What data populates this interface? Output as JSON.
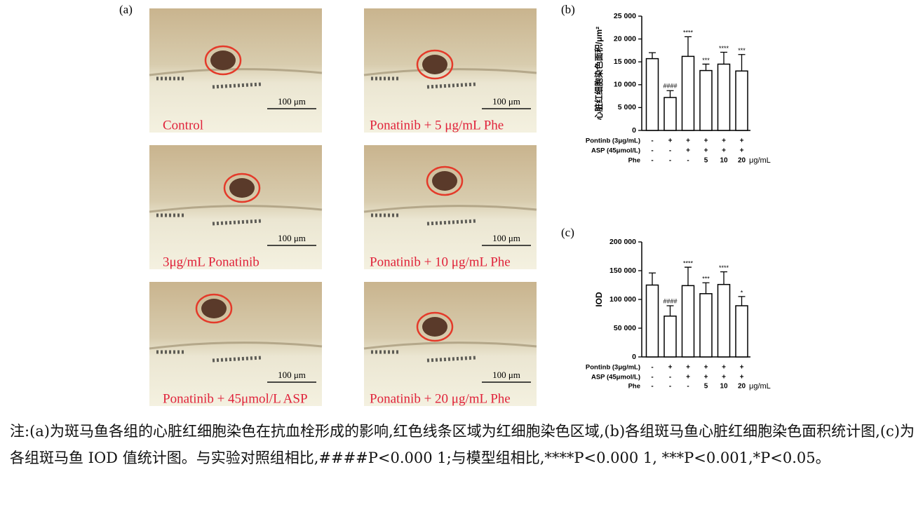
{
  "figure": {
    "panel_a": {
      "label": "(a)",
      "images": [
        {
          "caption": "Control",
          "scale": "100 μm"
        },
        {
          "caption": "Ponatinib + 5 μg/mL Phe",
          "scale": "100 μm"
        },
        {
          "caption": "3μg/mL  Ponatinib",
          "scale": "100 μm"
        },
        {
          "caption": "Ponatinib + 10 μg/mL Phe",
          "scale": "100 μm"
        },
        {
          "caption": "Ponatinib + 45μmol/L ASP",
          "scale": "100 μm"
        },
        {
          "caption": "Ponatinib + 20 μg/mL Phe",
          "scale": "100 μm"
        }
      ]
    },
    "caption": "注:(a)为斑马鱼各组的心脏红细胞染色在抗血栓形成的影响,红色线条区域为红细胞染色区域,(b)各组斑马鱼心脏红细胞染色面积统计图,(c)为各组斑马鱼 IOD 值统计图。与实验对照组相比,####P<0.000 1;与模型组相比,****P<0.000 1, ***P<0.001,*P<0.05。"
  },
  "chart_data": [
    {
      "type": "bar",
      "panel_label": "(b)",
      "y_label": "心脏红细胞染色面积/μm²",
      "color": "#ffffff",
      "values": [
        15700,
        7200,
        16200,
        13100,
        14500,
        13000
      ],
      "errors": [
        1300,
        1500,
        4300,
        1400,
        2600,
        3600
      ],
      "annotations": [
        null,
        "####",
        "****",
        "***",
        "****",
        "***"
      ],
      "ylim": [
        0,
        25000
      ],
      "yticks": [
        0,
        {
          "value": 5000,
          "label": "5 000"
        },
        {
          "value": 10000,
          "label": "10 000"
        },
        {
          "value": 15000,
          "label": "15 000"
        },
        {
          "value": 20000,
          "label": "20 000"
        },
        {
          "value": 25000,
          "label": "25 000"
        }
      ],
      "conditions": [
        {
          "name": "Pontinb (3μg/mL)",
          "values": [
            "-",
            "+",
            "+",
            "+",
            "+",
            "+"
          ]
        },
        {
          "name": "ASP (45μmol/L)",
          "values": [
            "-",
            "-",
            "+",
            "+",
            "+",
            "+"
          ]
        },
        {
          "name": "Phe",
          "values": [
            "-",
            "-",
            "-",
            "5",
            "10",
            "20"
          ]
        }
      ],
      "phe_unit": "μg/mL"
    },
    {
      "type": "bar",
      "panel_label": "(c)",
      "y_label": "IOD",
      "color": "#ffffff",
      "values": [
        125000,
        71000,
        124000,
        110000,
        126000,
        89000
      ],
      "errors": [
        21000,
        18000,
        32000,
        19000,
        22000,
        16000
      ],
      "annotations": [
        null,
        "####",
        "****",
        "***",
        "****",
        "*"
      ],
      "ylim": [
        0,
        200000
      ],
      "yticks": [
        0,
        {
          "value": 50000,
          "label": "50 000"
        },
        {
          "value": 100000,
          "label": "100 000"
        },
        {
          "value": 150000,
          "label": "150 000"
        },
        {
          "value": 200000,
          "label": "200 000"
        }
      ],
      "conditions": [
        {
          "name": "Pontinb (3μg/mL)",
          "values": [
            "-",
            "+",
            "+",
            "+",
            "+",
            "+"
          ]
        },
        {
          "name": "ASP (45μmol/L)",
          "values": [
            "-",
            "-",
            "+",
            "+",
            "+",
            "+"
          ]
        },
        {
          "name": "Phe",
          "values": [
            "-",
            "-",
            "-",
            "5",
            "10",
            "20"
          ]
        }
      ],
      "phe_unit": "μg/mL"
    }
  ]
}
